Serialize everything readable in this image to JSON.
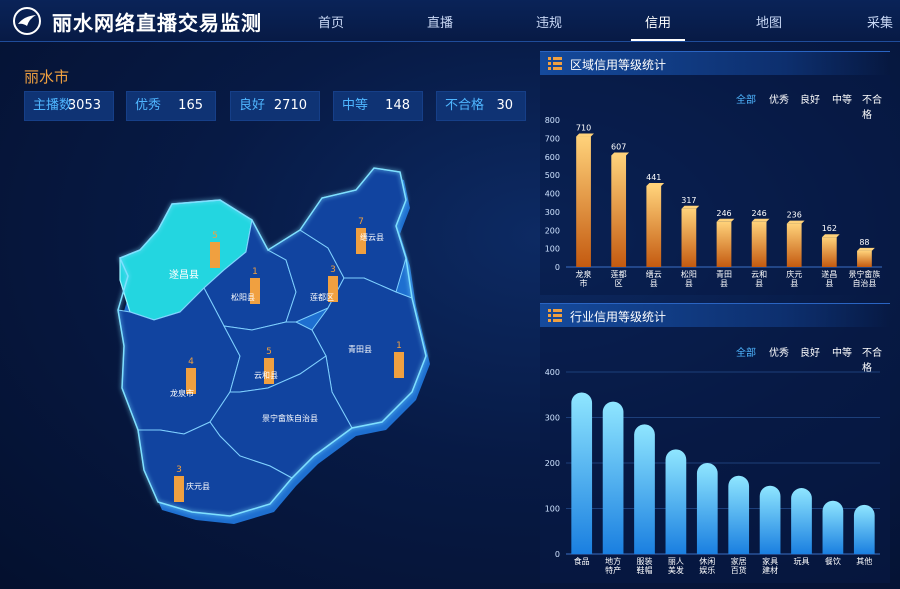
{
  "header": {
    "title": "丽水网络直播交易监测",
    "nav": [
      {
        "label": "首页",
        "active": false
      },
      {
        "label": "直播",
        "active": false
      },
      {
        "label": "违规",
        "active": false
      },
      {
        "label": "信用",
        "active": true
      },
      {
        "label": "地图",
        "active": false
      },
      {
        "label": "采集",
        "active": false
      }
    ]
  },
  "city": "丽水市",
  "stats": [
    {
      "label": "主播数",
      "value": "3053"
    },
    {
      "label": "优秀",
      "value": "165"
    },
    {
      "label": "良好",
      "value": "2710"
    },
    {
      "label": "中等",
      "value": "148"
    },
    {
      "label": "不合格",
      "value": "30"
    }
  ],
  "map": {
    "regions": [
      {
        "name": "遂昌县",
        "count": "5",
        "highlighted": true
      },
      {
        "name": "松阳县",
        "count": "1"
      },
      {
        "name": "莲都区",
        "count": "3"
      },
      {
        "name": "缙云县",
        "count": "7"
      },
      {
        "name": "青田县",
        "count": "1"
      },
      {
        "name": "龙泉市",
        "count": "4"
      },
      {
        "name": "云和县",
        "count": "5"
      },
      {
        "name": "景宁畲族自治县",
        "count": ""
      },
      {
        "name": "庆元县",
        "count": "3"
      }
    ]
  },
  "region_panel": {
    "title": "区域信用等级统计",
    "filters": [
      "全部",
      "优秀",
      "良好",
      "中等",
      "不合格"
    ],
    "active_filter": "全部"
  },
  "industry_panel": {
    "title": "行业信用等级统计",
    "filters": [
      "全部",
      "优秀",
      "良好",
      "中等",
      "不合格"
    ],
    "active_filter": "全部"
  },
  "chart_data": [
    {
      "type": "bar",
      "title": "区域信用等级统计",
      "categories": [
        "龙泉市",
        "莲都区",
        "缙云县",
        "松阳县",
        "青田县",
        "云和县",
        "庆元县",
        "遂昌县",
        "景宁畲族自治县"
      ],
      "category_lines": [
        [
          "龙泉",
          "市"
        ],
        [
          "莲都",
          "区"
        ],
        [
          "缙云",
          "县"
        ],
        [
          "松阳",
          "县"
        ],
        [
          "青田",
          "县"
        ],
        [
          "云和",
          "县"
        ],
        [
          "庆元",
          "县"
        ],
        [
          "遂昌",
          "县"
        ],
        [
          "景宁畲族",
          "自治县"
        ]
      ],
      "values": [
        710,
        607,
        441,
        317,
        246,
        246,
        236,
        162,
        88
      ],
      "yticks": [
        0,
        100,
        200,
        300,
        400,
        500,
        600,
        700,
        800
      ],
      "ylim": [
        0,
        800
      ],
      "color_top": "#ffd27a",
      "color_bottom": "#c45a10"
    },
    {
      "type": "bar",
      "title": "行业信用等级统计",
      "categories": [
        "食品",
        "地方特产",
        "服装鞋帽",
        "丽人美发",
        "休闲娱乐",
        "家居百货",
        "家具建材",
        "玩具",
        "餐饮",
        "其他"
      ],
      "category_lines": [
        [
          "食品"
        ],
        [
          "地方",
          "特产"
        ],
        [
          "服装",
          "鞋帽"
        ],
        [
          "丽人",
          "美发"
        ],
        [
          "休闲",
          "娱乐"
        ],
        [
          "家居",
          "百货"
        ],
        [
          "家具",
          "建材"
        ],
        [
          "玩具"
        ],
        [
          "餐饮"
        ],
        [
          "其他"
        ]
      ],
      "values": [
        355,
        335,
        285,
        230,
        200,
        172,
        150,
        145,
        117,
        108
      ],
      "yticks": [
        0,
        100,
        200,
        300,
        400
      ],
      "ylim": [
        0,
        400
      ],
      "color_top": "#8fe6ff",
      "color_bottom": "#1a7fe0"
    }
  ]
}
